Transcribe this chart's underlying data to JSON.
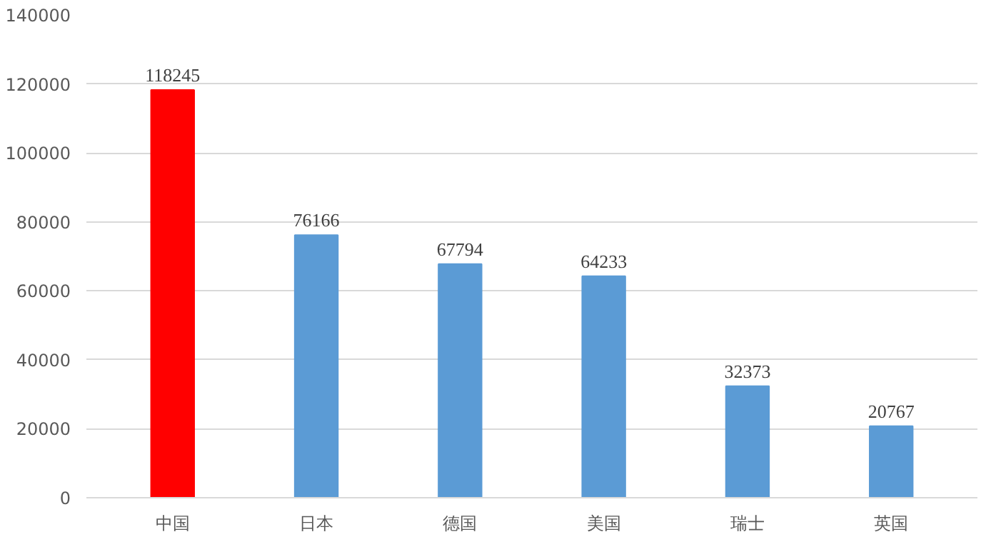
{
  "chart_data": {
    "type": "bar",
    "categories": [
      "中国",
      "日本",
      "德国",
      "美国",
      "瑞士",
      "英国"
    ],
    "values": [
      118245,
      76166,
      67794,
      64233,
      32373,
      20767
    ],
    "colors": [
      "#ff0000",
      "#5b9bd5",
      "#5b9bd5",
      "#5b9bd5",
      "#5b9bd5",
      "#5b9bd5"
    ],
    "ylim": [
      0,
      140000
    ],
    "yticks": [
      0,
      20000,
      40000,
      60000,
      80000,
      100000,
      120000,
      140000
    ],
    "grid": "y",
    "data_labels": true
  }
}
